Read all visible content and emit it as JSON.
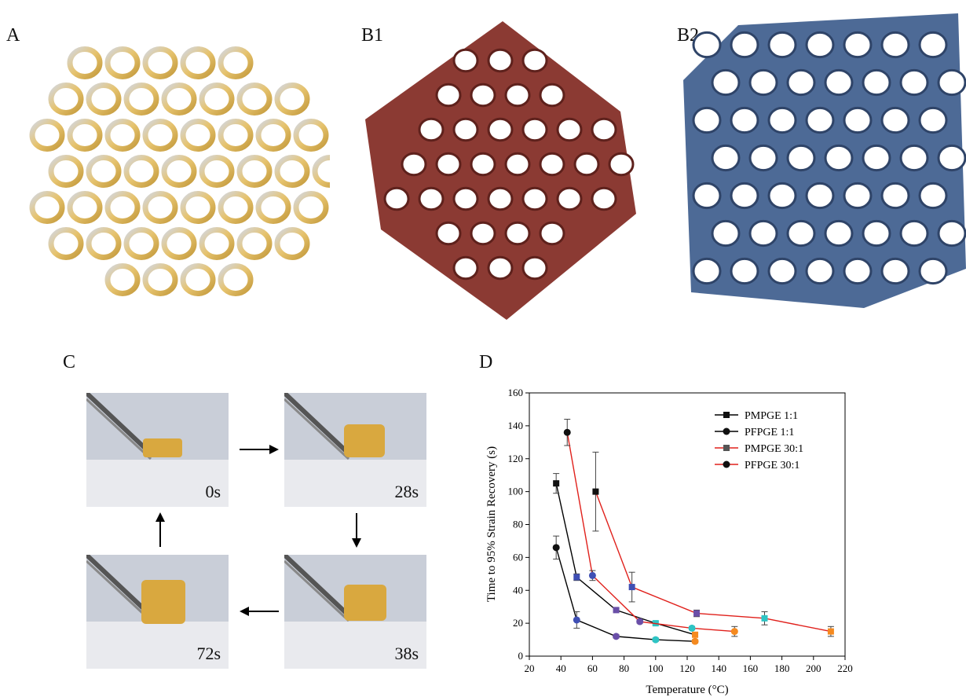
{
  "panels": {
    "a": "A",
    "b1": "B1",
    "b2": "B2",
    "c": "C",
    "d": "D"
  },
  "colors": {
    "model_gold": "#d6b25a",
    "model_silver": "#c9ced8",
    "scan_red": "#8b3a33",
    "scan_blue": "#4d6a96",
    "sample": "#d9a83f",
    "background_photo": "#c7ccd6"
  },
  "photos": [
    {
      "time": "0s"
    },
    {
      "time": "28s"
    },
    {
      "time": "38s"
    },
    {
      "time": "72s"
    }
  ],
  "chart_data": {
    "type": "line",
    "xlabel": "Temperature (°C)",
    "ylabel": "Time to 95% Strain Recovery (s)",
    "xlim": [
      20,
      220
    ],
    "ylim": [
      0,
      160
    ],
    "xticks": [
      20,
      40,
      60,
      80,
      100,
      120,
      140,
      160,
      180,
      200,
      220
    ],
    "yticks": [
      0,
      20,
      40,
      60,
      80,
      100,
      120,
      140,
      160
    ],
    "legend_position": "top-right",
    "series": [
      {
        "name": "PMPGE 1:1",
        "color": "#000000",
        "marker": "square",
        "x": [
          37,
          50,
          75,
          100,
          125
        ],
        "y": [
          105,
          48,
          28,
          20,
          13
        ],
        "err": [
          6,
          2,
          1,
          1,
          1
        ]
      },
      {
        "name": "PFPGE 1:1",
        "color": "#000000",
        "marker": "circle",
        "x": [
          37,
          50,
          75,
          100,
          125
        ],
        "y": [
          66,
          22,
          12,
          10,
          9
        ],
        "err": [
          7,
          5,
          1,
          1,
          1
        ]
      },
      {
        "name": "PMPGE 30:1",
        "color": "#e0201b",
        "marker": "square",
        "x": [
          62,
          85,
          126,
          169,
          211
        ],
        "y": [
          100,
          42,
          26,
          23,
          15
        ],
        "err": [
          24,
          9,
          2,
          4,
          3
        ]
      },
      {
        "name": "PFPGE 30:1",
        "color": "#e0201b",
        "marker": "circle",
        "x": [
          44,
          60,
          90,
          123,
          150
        ],
        "y": [
          136,
          49,
          21,
          17,
          15
        ],
        "err": [
          8,
          3,
          1,
          1,
          3
        ]
      }
    ],
    "marker_colors_by_index": [
      "#111111",
      "#3f4fb4",
      "#6a4fa8",
      "#2ec4c4",
      "#f58a1f"
    ]
  }
}
